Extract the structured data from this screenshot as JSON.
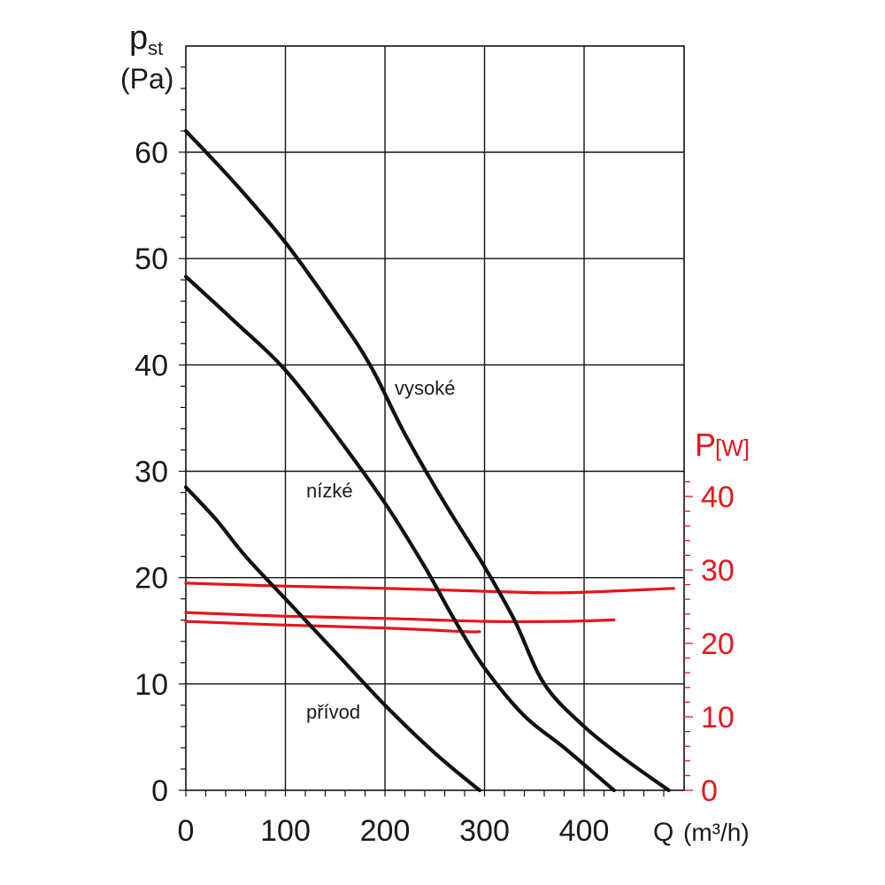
{
  "chart_data": {
    "type": "line",
    "x_axis": {
      "label_main": "Q",
      "label_unit": "(m³/h)",
      "range": [
        0,
        490
      ],
      "ticks": [
        "0",
        "100",
        "200",
        "300",
        "400"
      ],
      "tick_values": [
        0,
        100,
        200,
        300,
        400
      ]
    },
    "y_axis_left": {
      "label_symbol": "p",
      "label_sub": "st",
      "label_unit": "(Pa)",
      "range": [
        0,
        70
      ],
      "ticks": [
        "0",
        "10",
        "20",
        "30",
        "40",
        "50",
        "60"
      ],
      "tick_values": [
        0,
        10,
        20,
        30,
        40,
        50,
        60
      ]
    },
    "y_axis_right": {
      "label_symbol": "P",
      "label_unit": "[W]",
      "range": [
        0,
        44
      ],
      "ticks": [
        "0",
        "10",
        "20",
        "30",
        "40"
      ],
      "tick_values": [
        0,
        10,
        20,
        30,
        40
      ],
      "color": "#e8141b"
    },
    "grid": true,
    "pressure_series": [
      {
        "label": "vysoké",
        "color": "#111111",
        "points": [
          [
            0,
            62
          ],
          [
            50,
            57
          ],
          [
            100,
            51.5
          ],
          [
            150,
            45
          ],
          [
            185,
            40
          ],
          [
            220,
            33.5
          ],
          [
            260,
            27
          ],
          [
            300,
            21
          ],
          [
            330,
            16
          ],
          [
            360,
            10
          ],
          [
            400,
            6
          ],
          [
            440,
            3
          ],
          [
            485,
            0
          ]
        ]
      },
      {
        "label": "nízké",
        "color": "#111111",
        "points": [
          [
            0,
            48.3
          ],
          [
            50,
            44
          ],
          [
            100,
            39.5
          ],
          [
            150,
            33.5
          ],
          [
            200,
            27
          ],
          [
            240,
            21
          ],
          [
            270,
            16
          ],
          [
            300,
            11.5
          ],
          [
            340,
            7
          ],
          [
            380,
            4
          ],
          [
            430,
            0
          ]
        ]
      },
      {
        "label": "přívod",
        "color": "#111111",
        "points": [
          [
            0,
            28.5
          ],
          [
            30,
            25.5
          ],
          [
            60,
            22
          ],
          [
            100,
            18
          ],
          [
            150,
            13
          ],
          [
            200,
            8
          ],
          [
            250,
            3.5
          ],
          [
            295,
            0
          ]
        ]
      }
    ],
    "power_series": [
      {
        "color": "#e8141b",
        "points": [
          [
            0,
            28.2
          ],
          [
            100,
            27.8
          ],
          [
            200,
            27.5
          ],
          [
            300,
            27.1
          ],
          [
            380,
            26.9
          ],
          [
            490,
            27.5
          ]
        ]
      },
      {
        "color": "#e8141b",
        "points": [
          [
            0,
            24.2
          ],
          [
            100,
            23.7
          ],
          [
            200,
            23.4
          ],
          [
            300,
            23
          ],
          [
            380,
            23
          ],
          [
            430,
            23.2
          ]
        ]
      },
      {
        "color": "#e8141b",
        "points": [
          [
            0,
            23
          ],
          [
            100,
            22.5
          ],
          [
            200,
            22.1
          ],
          [
            280,
            21.6
          ],
          [
            295,
            21.6
          ]
        ]
      }
    ]
  }
}
